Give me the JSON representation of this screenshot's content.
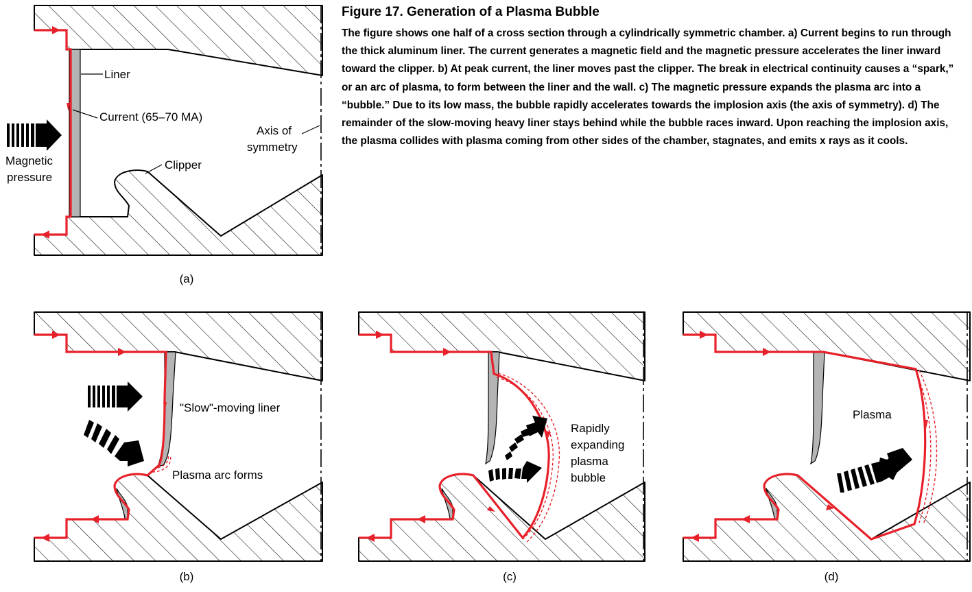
{
  "figure": {
    "title": "Figure 17. Generation of a Plasma Bubble",
    "caption": "The figure shows one half of a cross section through a cylindrically symmetric chamber. a) Current begins to run through the thick aluminum liner. The current generates a magnetic field and the magnetic pressure accelerates the liner inward toward the clipper. b) At peak current, the liner moves past the clipper. The break in electrical continuity causes a “spark,” or an arc of plasma, to form between the liner and the wall. c) The magnetic pressure expands the plasma arc into a “bubble.” Due to its low mass, the bubble rapidly accelerates towards the implosion axis (the axis of symmetry). d) The remainder of the slow-moving heavy liner stays behind while the bubble races inward. Upon reaching the implosion axis, the plasma collides with plasma coming from other sides of the chamber, stagnates, and emits x rays as it cools."
  },
  "panel_a": {
    "sublabel": "(a)",
    "liner_label": "Liner",
    "current_label": "Current (65–70 MA)",
    "pressure_line1": "Magnetic",
    "pressure_line2": "pressure",
    "axis_line1": "Axis of",
    "axis_line2": "symmetry",
    "clipper_label": "Clipper"
  },
  "panel_b": {
    "sublabel": "(b)",
    "liner_label": "\"Slow\"-moving liner",
    "arc_label": "Plasma arc forms"
  },
  "panel_c": {
    "sublabel": "(c)",
    "bubble_line1": "Rapidly",
    "bubble_line2": "expanding",
    "bubble_line3": "plasma",
    "bubble_line4": "bubble"
  },
  "panel_d": {
    "sublabel": "(d)",
    "plasma_label": "Plasma"
  },
  "colors": {
    "current": "#e8202a",
    "liner": "#b4b4b4"
  }
}
